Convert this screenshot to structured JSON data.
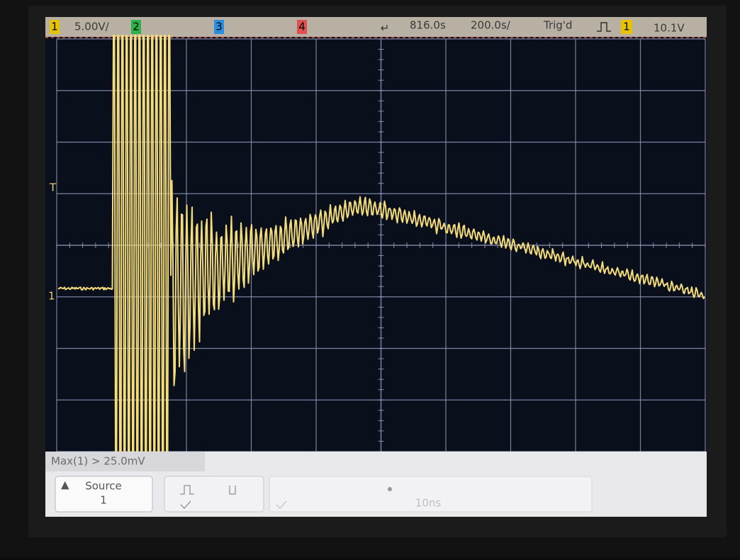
{
  "top_bar": {
    "channel_1": "1",
    "ch1_scale": "5.00V/",
    "channel_2": "2",
    "channel_3": "3",
    "channel_4": "4",
    "delay": "816.0s",
    "time_scale": "200.0s/",
    "trigger_status": "Trig'd",
    "trigger_source": "1",
    "trigger_level": "10.1V"
  },
  "markers": {
    "trigger_level": "T",
    "ground": "1"
  },
  "measurement": "Max(1) > 25.0mV",
  "softkeys": {
    "source_label": "Source",
    "source_value": "1",
    "time": "10ns"
  }
}
